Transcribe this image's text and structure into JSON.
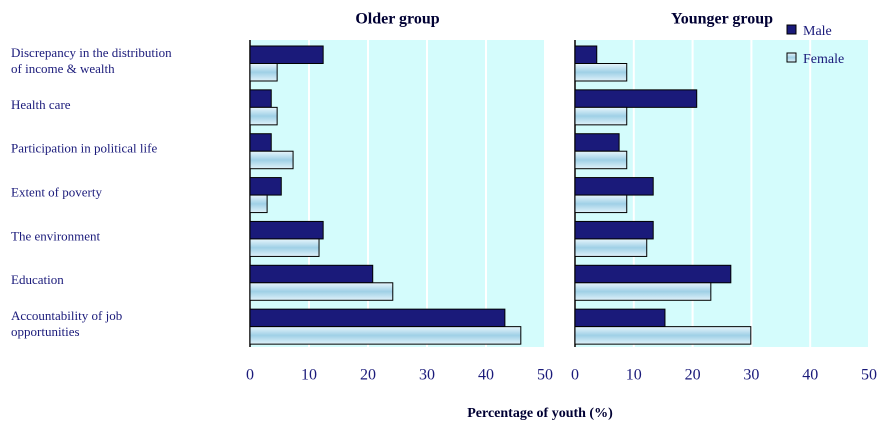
{
  "chart_data": {
    "type": "bar",
    "orientation": "horizontal",
    "categories": [
      "Discrepancy in the distribution of income & wealth",
      "Health care",
      "Participation in political life",
      "Extent of poverty",
      "The environment",
      "Education",
      "Accountability of job opportunities"
    ],
    "series": [
      {
        "name": "Male",
        "color": "#1a1a7a"
      },
      {
        "name": "Female",
        "color": "#bfe3f2"
      }
    ],
    "xlabel": "Percentage of youth (%)",
    "legend": "upper right",
    "grid": true,
    "panels": [
      {
        "title": "Older group",
        "xlim": [
          0,
          50
        ],
        "xticks": [
          0,
          10,
          20,
          30,
          40,
          50
        ],
        "series_values": [
          [
            12.4,
            3.6,
            3.6,
            5.3,
            12.4,
            20.8,
            43.2
          ],
          [
            4.6,
            4.6,
            7.3,
            2.9,
            11.7,
            24.2,
            45.9
          ]
        ]
      },
      {
        "title": "Younger group",
        "xlim": [
          0,
          50
        ],
        "xticks": [
          0,
          10,
          20,
          30,
          40,
          50
        ],
        "series_values": [
          [
            3.7,
            20.7,
            7.5,
            13.3,
            13.3,
            26.5,
            15.3
          ],
          [
            8.8,
            8.8,
            8.8,
            8.8,
            12.2,
            23.1,
            29.9
          ]
        ]
      }
    ]
  }
}
